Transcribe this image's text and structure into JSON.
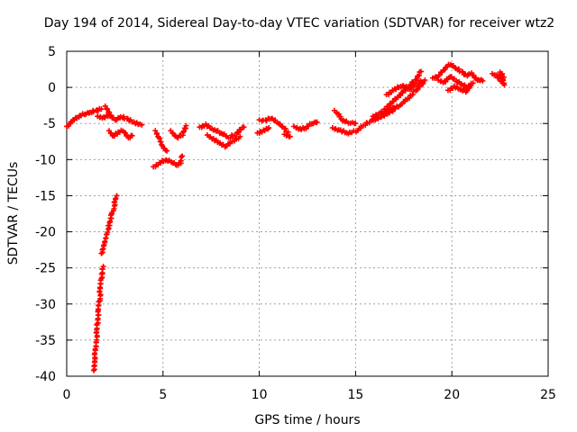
{
  "chart_data": {
    "type": "scatter",
    "title": "Day 194 of 2014, Sidereal Day-to-day VTEC variation (SDTVAR) for receiver wtz2",
    "xlabel": "GPS time / hours",
    "ylabel": "SDTVAR / TECUs",
    "xlim": [
      0,
      25
    ],
    "ylim": [
      -40,
      5
    ],
    "xticks": [
      0,
      5,
      10,
      15,
      20,
      25
    ],
    "yticks": [
      5,
      0,
      -5,
      -10,
      -15,
      -20,
      -25,
      -30,
      -35,
      -40
    ],
    "grid": true,
    "marker": "+",
    "colors": {
      "series": "#ff0000",
      "grid": "#a0a0a0",
      "axis": "#000000"
    },
    "series": [
      {
        "name": "SDTVAR",
        "segments": [
          [
            [
              0.0,
              -5.4
            ],
            [
              0.3,
              -4.6
            ],
            [
              0.6,
              -4.0
            ],
            [
              0.9,
              -3.7
            ],
            [
              1.2,
              -3.5
            ],
            [
              1.5,
              -3.2
            ],
            [
              1.8,
              -3.0
            ]
          ],
          [
            [
              1.4,
              -39.2
            ],
            [
              1.5,
              -36.0
            ],
            [
              1.6,
              -32.5
            ],
            [
              1.7,
              -29.5
            ],
            [
              1.8,
              -26.5
            ],
            [
              1.9,
              -24.8
            ]
          ],
          [
            [
              1.8,
              -23.0
            ],
            [
              2.0,
              -21.0
            ],
            [
              2.2,
              -19.0
            ],
            [
              2.4,
              -17.0
            ],
            [
              2.6,
              -15.0
            ]
          ],
          [
            [
              1.6,
              -4.0
            ],
            [
              1.9,
              -4.2
            ],
            [
              2.2,
              -3.8
            ],
            [
              2.5,
              -4.5
            ],
            [
              2.8,
              -4.1
            ],
            [
              3.1,
              -4.3
            ],
            [
              3.5,
              -4.8
            ],
            [
              3.9,
              -5.2
            ]
          ],
          [
            [
              2.0,
              -2.6
            ],
            [
              2.3,
              -4.0
            ]
          ],
          [
            [
              2.2,
              -6.0
            ],
            [
              2.4,
              -6.8
            ],
            [
              2.6,
              -6.3
            ],
            [
              2.9,
              -6.0
            ],
            [
              3.2,
              -7.0
            ],
            [
              3.4,
              -6.7
            ]
          ],
          [
            [
              4.6,
              -6.0
            ],
            [
              4.8,
              -7.2
            ],
            [
              5.0,
              -8.3
            ],
            [
              5.2,
              -8.8
            ]
          ],
          [
            [
              4.5,
              -11.0
            ],
            [
              4.8,
              -10.5
            ],
            [
              5.1,
              -10.0
            ],
            [
              5.4,
              -10.3
            ],
            [
              5.7,
              -10.8
            ],
            [
              5.9,
              -10.5
            ],
            [
              6.0,
              -9.5
            ]
          ],
          [
            [
              5.4,
              -6.0
            ],
            [
              5.7,
              -7.0
            ],
            [
              6.0,
              -6.5
            ],
            [
              6.2,
              -5.3
            ]
          ],
          [
            [
              6.9,
              -5.5
            ],
            [
              7.2,
              -5.2
            ],
            [
              7.6,
              -5.8
            ],
            [
              8.0,
              -6.3
            ],
            [
              8.4,
              -7.0
            ],
            [
              8.8,
              -6.4
            ],
            [
              9.2,
              -5.5
            ]
          ],
          [
            [
              7.3,
              -6.6
            ],
            [
              7.6,
              -7.2
            ],
            [
              7.9,
              -7.6
            ],
            [
              8.2,
              -8.2
            ],
            [
              8.6,
              -7.5
            ],
            [
              9.0,
              -6.8
            ]
          ],
          [
            [
              10.0,
              -4.5
            ],
            [
              10.3,
              -4.6
            ],
            [
              10.6,
              -4.2
            ],
            [
              10.9,
              -4.8
            ],
            [
              11.2,
              -5.5
            ],
            [
              11.5,
              -6.2
            ]
          ],
          [
            [
              9.9,
              -6.3
            ],
            [
              10.2,
              -6.0
            ],
            [
              10.5,
              -5.6
            ]
          ],
          [
            [
              11.3,
              -6.5
            ],
            [
              11.6,
              -6.8
            ]
          ],
          [
            [
              11.8,
              -5.4
            ],
            [
              12.1,
              -5.8
            ],
            [
              12.4,
              -5.6
            ],
            [
              12.7,
              -5.0
            ],
            [
              13.0,
              -4.8
            ]
          ],
          [
            [
              13.9,
              -3.2
            ],
            [
              14.1,
              -3.8
            ],
            [
              14.3,
              -4.5
            ],
            [
              14.6,
              -4.9
            ],
            [
              15.0,
              -5.0
            ]
          ],
          [
            [
              13.8,
              -5.6
            ],
            [
              14.2,
              -6.0
            ],
            [
              14.6,
              -6.3
            ],
            [
              15.0,
              -6.1
            ],
            [
              15.4,
              -5.3
            ],
            [
              15.8,
              -4.6
            ],
            [
              16.0,
              -4.2
            ]
          ],
          [
            [
              15.9,
              -4.0
            ],
            [
              16.3,
              -3.5
            ],
            [
              16.7,
              -3.2
            ],
            [
              17.0,
              -2.8
            ]
          ],
          [
            [
              15.9,
              -4.5
            ],
            [
              16.4,
              -4.0
            ],
            [
              16.9,
              -3.2
            ],
            [
              17.3,
              -2.4
            ],
            [
              17.7,
              -1.6
            ],
            [
              18.1,
              -0.5
            ],
            [
              18.5,
              0.5
            ]
          ],
          [
            [
              16.5,
              -3.0
            ],
            [
              16.9,
              -2.0
            ],
            [
              17.3,
              -1.0
            ],
            [
              17.7,
              0.0
            ],
            [
              18.1,
              1.0
            ],
            [
              18.4,
              2.2
            ]
          ],
          [
            [
              16.6,
              -1.0
            ],
            [
              17.0,
              -0.3
            ],
            [
              17.4,
              0.3
            ],
            [
              17.8,
              -0.2
            ],
            [
              18.2,
              0.6
            ],
            [
              18.6,
              1.0
            ]
          ],
          [
            [
              19.0,
              1.3
            ],
            [
              19.3,
              1.6
            ],
            [
              19.6,
              2.6
            ],
            [
              19.9,
              3.2
            ],
            [
              20.2,
              2.6
            ],
            [
              20.5,
              2.2
            ],
            [
              20.8,
              1.6
            ]
          ],
          [
            [
              19.3,
              1.0
            ],
            [
              19.6,
              0.7
            ],
            [
              19.9,
              1.6
            ],
            [
              20.2,
              0.9
            ],
            [
              20.5,
              0.4
            ],
            [
              20.8,
              0.0
            ],
            [
              21.1,
              0.6
            ]
          ],
          [
            [
              19.8,
              -0.4
            ],
            [
              20.1,
              0.1
            ],
            [
              20.4,
              -0.2
            ],
            [
              20.7,
              -0.6
            ],
            [
              21.0,
              0.3
            ]
          ],
          [
            [
              20.7,
              1.8
            ],
            [
              21.0,
              1.9
            ],
            [
              21.3,
              1.1
            ],
            [
              21.6,
              0.9
            ]
          ],
          [
            [
              22.1,
              1.9
            ],
            [
              22.3,
              1.6
            ],
            [
              22.5,
              1.0
            ],
            [
              22.7,
              0.4
            ],
            [
              22.5,
              2.1
            ],
            [
              22.7,
              1.4
            ]
          ]
        ]
      }
    ]
  }
}
